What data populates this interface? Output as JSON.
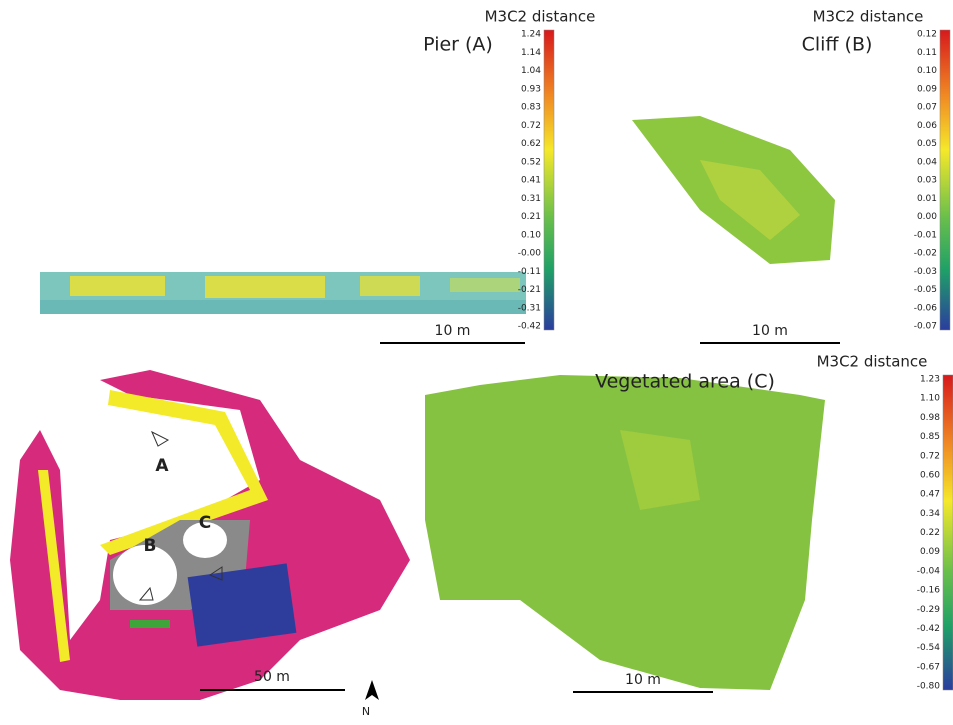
{
  "panels": [
    {
      "title": "Pier (A)",
      "colorbar": {
        "title": "M3C2 distance",
        "ticks": [
          "1.24",
          "1.14",
          "1.04",
          "0.93",
          "0.83",
          "0.72",
          "0.62",
          "0.52",
          "0.41",
          "0.31",
          "0.21",
          "0.10",
          "-0.00",
          "-0.11",
          "-0.21",
          "-0.31",
          "-0.42"
        ]
      },
      "scale_bar": "10 m"
    },
    {
      "title": "Cliff (B)",
      "colorbar": {
        "title": "M3C2 distance",
        "ticks": [
          "0.12",
          "0.11",
          "0.10",
          "0.09",
          "0.07",
          "0.06",
          "0.05",
          "0.04",
          "0.03",
          "0.01",
          "0.00",
          "-0.01",
          "-0.02",
          "-0.03",
          "-0.05",
          "-0.06",
          "-0.07"
        ]
      },
      "scale_bar": "10 m"
    },
    {
      "title": "Vegetated area (C)",
      "colorbar": {
        "title": "M3C2 distance",
        "ticks": [
          "1.23",
          "1.10",
          "0.98",
          "0.85",
          "0.72",
          "0.60",
          "0.47",
          "0.34",
          "0.22",
          "0.09",
          "-0.04",
          "-0.16",
          "-0.29",
          "-0.42",
          "-0.54",
          "-0.67",
          "-0.80"
        ]
      },
      "scale_bar": "10 m"
    }
  ],
  "map": {
    "labels": [
      "A",
      "B",
      "C"
    ],
    "scale_bar": "50 m",
    "north": "N"
  }
}
